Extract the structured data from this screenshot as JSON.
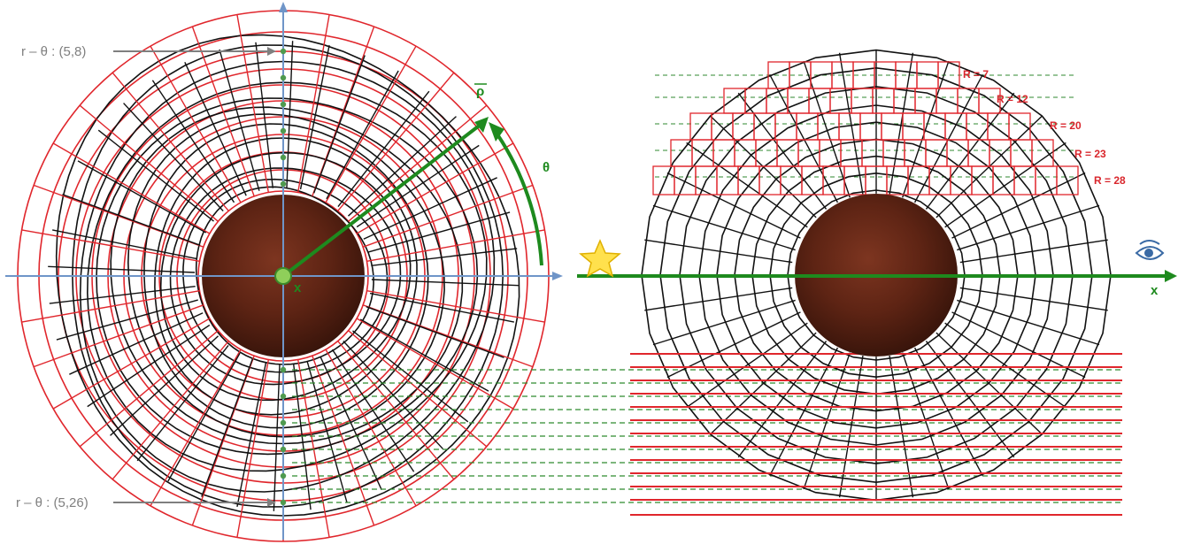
{
  "labels": {
    "top_coord": "r – θ : (5,8)",
    "bottom_coord": "r – θ : (5,26)",
    "rho": "ρ",
    "theta": "θ",
    "x_left": "x",
    "x_right": "x"
  },
  "right_panel": {
    "r_labels": [
      "R = 7",
      "R = 12",
      "R = 20",
      "R = 23",
      "R = 28"
    ]
  },
  "colors": {
    "axis": "#6f95c8",
    "grid_black": "#111111",
    "grid_red": "#e0262c",
    "green": "#1e8a1e",
    "dashed_green": "#2f8a2f",
    "planet": "#6e2a18",
    "star": "#ffe14d"
  },
  "icons": [
    "star-icon",
    "eye-icon"
  ]
}
